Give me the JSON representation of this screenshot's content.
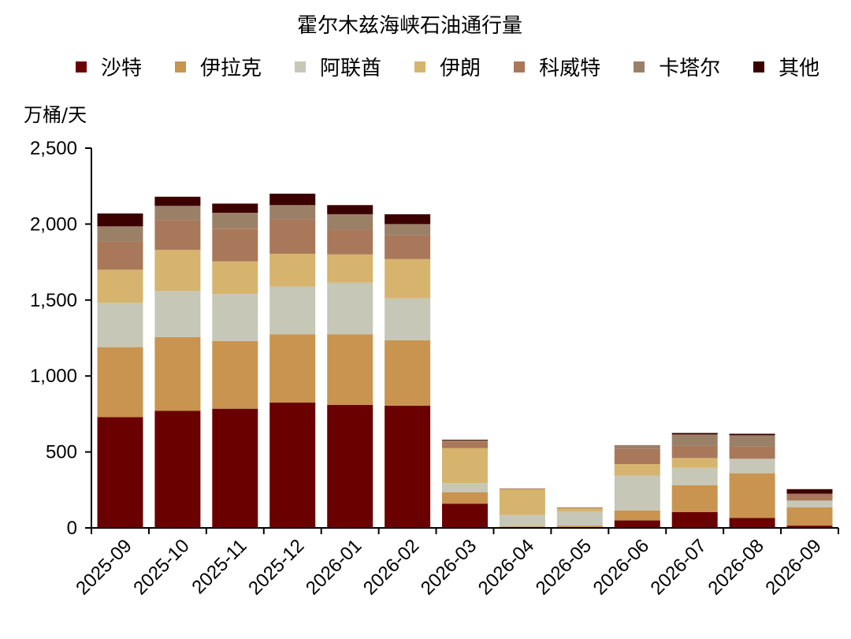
{
  "chart_data": {
    "type": "bar",
    "stacked": true,
    "title": "霍尔木兹海峡石油通行量",
    "ylabel": "万桶/天",
    "xlabel": "",
    "ylim": [
      0,
      2500
    ],
    "yticks": [
      0,
      500,
      1000,
      1500,
      2000,
      2500
    ],
    "ytick_labels": [
      "0",
      "500",
      "1,000",
      "1,500",
      "2,000",
      "2,500"
    ],
    "grid": false,
    "legend_position": "top",
    "categories": [
      "2025-09",
      "2025-10",
      "2025-11",
      "2025-12",
      "2026-01",
      "2026-02",
      "2026-03",
      "2026-04",
      "2026-05",
      "2026-06",
      "2026-07",
      "2026-08",
      "2026-09"
    ],
    "series": [
      {
        "name": "沙特",
        "color": "#6b0000",
        "values": [
          730,
          770,
          785,
          825,
          810,
          805,
          160,
          0,
          0,
          50,
          105,
          65,
          15
        ]
      },
      {
        "name": "伊拉克",
        "color": "#c8944f",
        "values": [
          460,
          485,
          445,
          450,
          465,
          430,
          75,
          10,
          15,
          65,
          175,
          295,
          120
        ]
      },
      {
        "name": "阿联酋",
        "color": "#c7c7b7",
        "values": [
          290,
          305,
          310,
          315,
          340,
          275,
          60,
          75,
          90,
          230,
          115,
          95,
          45
        ]
      },
      {
        "name": "伊朗",
        "color": "#d6b46e",
        "values": [
          220,
          270,
          215,
          215,
          185,
          260,
          230,
          170,
          25,
          75,
          65,
          0,
          0
        ]
      },
      {
        "name": "科威特",
        "color": "#a9785a",
        "values": [
          185,
          195,
          215,
          225,
          165,
          155,
          45,
          5,
          5,
          100,
          80,
          80,
          45
        ]
      },
      {
        "name": "卡塔尔",
        "color": "#9b8068",
        "values": [
          100,
          95,
          105,
          95,
          100,
          75,
          5,
          0,
          0,
          25,
          75,
          75,
          0
        ]
      },
      {
        "name": "其他",
        "color": "#3b0000",
        "values": [
          85,
          60,
          60,
          75,
          60,
          65,
          5,
          0,
          0,
          0,
          10,
          10,
          30
        ]
      }
    ]
  }
}
